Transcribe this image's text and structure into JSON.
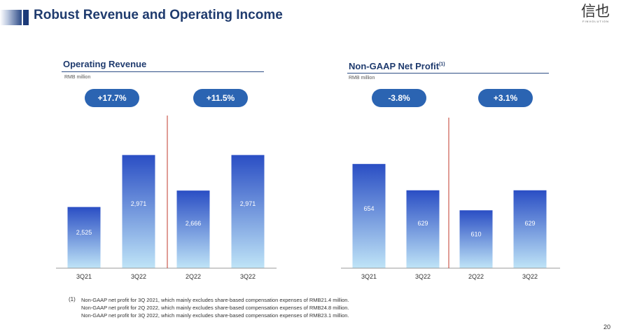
{
  "header": {
    "title": "Robust Revenue and Operating Income"
  },
  "logo": {
    "mark": "信也",
    "sub": "FINVOLUTION"
  },
  "colors": {
    "title": "#1f3b6e",
    "pill": "#2b64b2",
    "bar_top": "#2a4ec4",
    "bar_bottom": "#bfe4f7",
    "divider": "#c0392b"
  },
  "chart_data": [
    {
      "type": "bar",
      "title": "Operating Revenue",
      "unit": "RMB million",
      "categories": [
        "3Q21",
        "3Q22",
        "2Q22",
        "3Q22"
      ],
      "values": [
        2525,
        2971,
        2666,
        2971
      ],
      "value_labels": [
        "2,525",
        "2,971",
        "2,666",
        "2,971"
      ],
      "ylim": [
        2000,
        3400
      ],
      "growth_pills": [
        "+17.7%",
        "+11.5%"
      ]
    },
    {
      "type": "bar",
      "title": "Non-GAAP Net Profit",
      "title_sup": "(1)",
      "unit": "RMB million",
      "categories": [
        "3Q21",
        "3Q22",
        "2Q22",
        "3Q22"
      ],
      "values": [
        654,
        629,
        610,
        629
      ],
      "value_labels": [
        "654",
        "629",
        "610",
        "629"
      ],
      "ylim": [
        555,
        710
      ],
      "growth_pills": [
        "-3.8%",
        "+3.1%"
      ]
    }
  ],
  "footnote": {
    "number": "(1)",
    "lines": [
      "Non-GAAP net profit for 3Q 2021, which mainly excludes share-based compensation expenses of RMB21.4 million.",
      "Non-GAAP net profit for 2Q 2022, which mainly excludes share-based compensation expenses of RMB24.8 million.",
      "Non-GAAP net profit for 3Q 2022, which mainly excludes share-based compensation expenses of RMB23.1 million."
    ]
  },
  "page_number": "20"
}
